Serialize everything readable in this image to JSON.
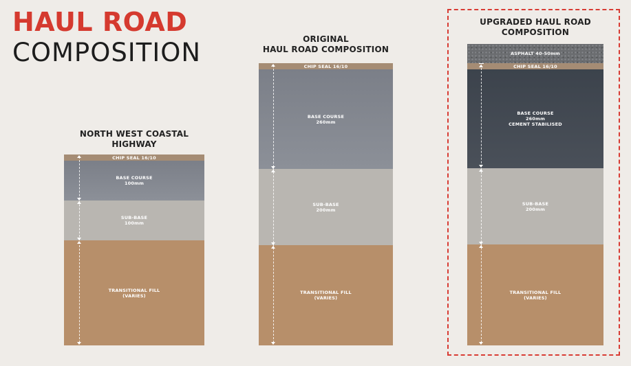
{
  "title": {
    "line1": "HAUL ROAD",
    "line2": "COMPOSITION"
  },
  "colors": {
    "accent": "#d53a2f",
    "chip_seal": "#a58c74",
    "base_course": "#858992",
    "base_course_cement": "#434a53",
    "sub_base": "#b9b6b1",
    "transitional_fill": "#b78f6a",
    "asphalt": "#6b6d70"
  },
  "columns": [
    {
      "heading_line1": "NORTH WEST COASTAL",
      "heading_line2": "HIGHWAY",
      "layers": [
        {
          "label": "CHIP SEAL 16/10"
        },
        {
          "label": "BASE COURSE",
          "sub": "100mm"
        },
        {
          "label": "SUB-BASE",
          "sub": "100mm"
        },
        {
          "label": "TRANSITIONAL FILL",
          "sub": "(VARIES)"
        }
      ]
    },
    {
      "heading_line1": "ORIGINAL",
      "heading_line2": "HAUL ROAD COMPOSITION",
      "layers": [
        {
          "label": "CHIP SEAL 16/10"
        },
        {
          "label": "BASE COURSE",
          "sub": "260mm"
        },
        {
          "label": "SUB-BASE",
          "sub": "200mm"
        },
        {
          "label": "TRANSITIONAL FILL",
          "sub": "(VARIES)"
        }
      ]
    },
    {
      "heading_line1": "UPGRADED HAUL ROAD",
      "heading_line2": "COMPOSITION",
      "layers": [
        {
          "label": "ASPHALT 40-50mm"
        },
        {
          "label": "CHIP SEAL 16/10"
        },
        {
          "label": "BASE COURSE",
          "sub": "260mm",
          "sub2": "CEMENT STABILISED"
        },
        {
          "label": "SUB-BASE",
          "sub": "200mm"
        },
        {
          "label": "TRANSITIONAL FILL",
          "sub": "(VARIES)"
        }
      ]
    }
  ]
}
